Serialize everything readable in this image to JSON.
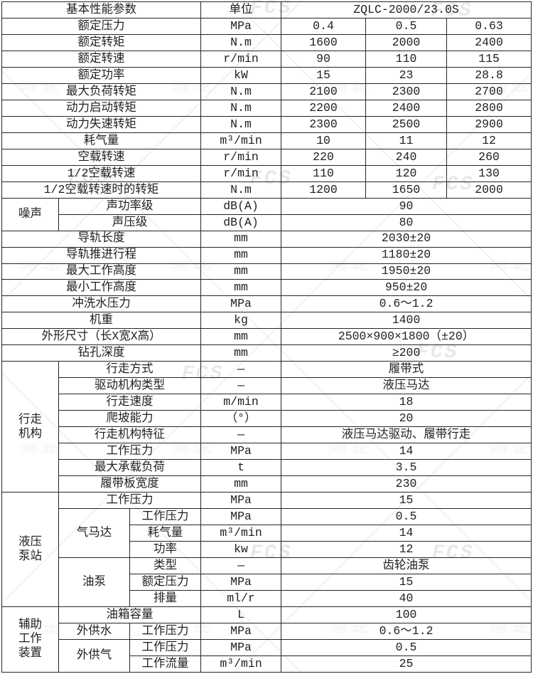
{
  "colors": {
    "background": "#ffffff",
    "border": "#262626",
    "text": "#1f1f1f",
    "watermark_gray": "#b2b2b2"
  },
  "watermark": {
    "fcs": "FCS",
    "cjk": "河北"
  },
  "table": {
    "rows": [
      [
        {
          "k": "h",
          "t": "基本性能参数",
          "c": 3
        },
        {
          "k": "h",
          "t": "单位"
        },
        {
          "k": "h",
          "t": "ZQLC-2000/23.0S",
          "c": 3
        }
      ],
      [
        {
          "k": "p",
          "t": "额定压力",
          "c": 3
        },
        {
          "k": "u",
          "t": "MPa"
        },
        {
          "k": "v",
          "t": "0.4"
        },
        {
          "k": "v",
          "t": "0.5"
        },
        {
          "k": "v",
          "t": "0.63"
        }
      ],
      [
        {
          "k": "p",
          "t": "额定转矩",
          "c": 3
        },
        {
          "k": "u",
          "t": "N.m"
        },
        {
          "k": "v",
          "t": "1600"
        },
        {
          "k": "v",
          "t": "2000"
        },
        {
          "k": "v",
          "t": "2400"
        }
      ],
      [
        {
          "k": "p",
          "t": "额定转速",
          "c": 3
        },
        {
          "k": "u",
          "t": "r/min"
        },
        {
          "k": "v",
          "t": "90"
        },
        {
          "k": "v",
          "t": "110"
        },
        {
          "k": "v",
          "t": "115"
        }
      ],
      [
        {
          "k": "p",
          "t": "额定功率",
          "c": 3
        },
        {
          "k": "u",
          "t": "kW"
        },
        {
          "k": "v",
          "t": "15"
        },
        {
          "k": "v",
          "t": "23"
        },
        {
          "k": "v",
          "t": "28.8"
        }
      ],
      [
        {
          "k": "p",
          "t": "最大负荷转矩",
          "c": 3
        },
        {
          "k": "u",
          "t": "N.m"
        },
        {
          "k": "v",
          "t": "2100"
        },
        {
          "k": "v",
          "t": "2300"
        },
        {
          "k": "v",
          "t": "2700"
        }
      ],
      [
        {
          "k": "p",
          "t": "动力启动转矩",
          "c": 3
        },
        {
          "k": "u",
          "t": "N.m"
        },
        {
          "k": "v",
          "t": "2200"
        },
        {
          "k": "v",
          "t": "2400"
        },
        {
          "k": "v",
          "t": "2800"
        }
      ],
      [
        {
          "k": "p",
          "t": "动力失速转矩",
          "c": 3
        },
        {
          "k": "u",
          "t": "N.m"
        },
        {
          "k": "v",
          "t": "2300"
        },
        {
          "k": "v",
          "t": "2500"
        },
        {
          "k": "v",
          "t": "2900"
        }
      ],
      [
        {
          "k": "p",
          "t": "耗气量",
          "c": 3
        },
        {
          "k": "u",
          "t": "m³/min"
        },
        {
          "k": "v",
          "t": "10"
        },
        {
          "k": "v",
          "t": "11"
        },
        {
          "k": "v",
          "t": "12"
        }
      ],
      [
        {
          "k": "p",
          "t": "空载转速",
          "c": 3
        },
        {
          "k": "u",
          "t": "r/min"
        },
        {
          "k": "v",
          "t": "220"
        },
        {
          "k": "v",
          "t": "240"
        },
        {
          "k": "v",
          "t": "260"
        }
      ],
      [
        {
          "k": "p",
          "t": "1/2空载转速",
          "c": 3
        },
        {
          "k": "u",
          "t": "r/min"
        },
        {
          "k": "v",
          "t": "110"
        },
        {
          "k": "v",
          "t": "120"
        },
        {
          "k": "v",
          "t": "130"
        }
      ],
      [
        {
          "k": "p",
          "t": "1/2空载转速时的转矩",
          "c": 3
        },
        {
          "k": "u",
          "t": "N.m"
        },
        {
          "k": "v",
          "t": "1200"
        },
        {
          "k": "v",
          "t": "1650"
        },
        {
          "k": "v",
          "t": "2000"
        }
      ],
      [
        {
          "k": "g",
          "t": "噪声",
          "r": 2
        },
        {
          "k": "p",
          "t": "声功率级",
          "c": 2
        },
        {
          "k": "u",
          "t": "dB(A)"
        },
        {
          "k": "v",
          "t": "90",
          "c": 3
        }
      ],
      [
        {
          "k": "p",
          "t": "声压级",
          "c": 2
        },
        {
          "k": "u",
          "t": "dB(A)"
        },
        {
          "k": "v",
          "t": "80",
          "c": 3
        }
      ],
      [
        {
          "k": "p",
          "t": "导轨长度",
          "c": 3
        },
        {
          "k": "u",
          "t": "mm"
        },
        {
          "k": "v",
          "t": "2030±20",
          "c": 3
        }
      ],
      [
        {
          "k": "p",
          "t": "导轨推进行程",
          "c": 3
        },
        {
          "k": "u",
          "t": "mm"
        },
        {
          "k": "v",
          "t": "1180±20",
          "c": 3
        }
      ],
      [
        {
          "k": "p",
          "t": "最大工作高度",
          "c": 3
        },
        {
          "k": "u",
          "t": "mm"
        },
        {
          "k": "v",
          "t": "1950±20",
          "c": 3
        }
      ],
      [
        {
          "k": "p",
          "t": "最小工作高度",
          "c": 3
        },
        {
          "k": "u",
          "t": "mm"
        },
        {
          "k": "v",
          "t": "950±20",
          "c": 3
        }
      ],
      [
        {
          "k": "p",
          "t": "冲洗水压力",
          "c": 3
        },
        {
          "k": "u",
          "t": "MPa"
        },
        {
          "k": "v",
          "t": "0.6～1.2",
          "c": 3
        }
      ],
      [
        {
          "k": "p",
          "t": "机重",
          "c": 3
        },
        {
          "k": "u",
          "t": "kg"
        },
        {
          "k": "v",
          "t": "1400",
          "c": 3
        }
      ],
      [
        {
          "k": "p",
          "t": "外形尺寸（长X宽X高）",
          "c": 3
        },
        {
          "k": "u",
          "t": "mm"
        },
        {
          "k": "v",
          "t": "2500×900×1800（±20）",
          "c": 3
        }
      ],
      [
        {
          "k": "p",
          "t": "钻孔深度",
          "c": 3
        },
        {
          "k": "u",
          "t": "mm"
        },
        {
          "k": "v",
          "t": "≥200",
          "c": 3
        }
      ],
      [
        {
          "k": "g",
          "t": "行走\n机构",
          "r": 8
        },
        {
          "k": "p",
          "t": "行走方式",
          "c": 2
        },
        {
          "k": "u",
          "t": "—"
        },
        {
          "k": "v",
          "t": "履带式",
          "c": 3
        }
      ],
      [
        {
          "k": "p",
          "t": "驱动机构类型",
          "c": 2
        },
        {
          "k": "u",
          "t": "—"
        },
        {
          "k": "v",
          "t": "液压马达",
          "c": 3
        }
      ],
      [
        {
          "k": "p",
          "t": "行走速度",
          "c": 2
        },
        {
          "k": "u",
          "t": "m/min"
        },
        {
          "k": "v",
          "t": "18",
          "c": 3
        }
      ],
      [
        {
          "k": "p",
          "t": "爬坡能力",
          "c": 2
        },
        {
          "k": "u",
          "t": "（°）"
        },
        {
          "k": "v",
          "t": "20",
          "c": 3
        }
      ],
      [
        {
          "k": "p",
          "t": "行走机构特征",
          "c": 2
        },
        {
          "k": "u",
          "t": "—"
        },
        {
          "k": "v",
          "t": "液压马达驱动、履带行走",
          "c": 3
        }
      ],
      [
        {
          "k": "p",
          "t": "工作压力",
          "c": 2
        },
        {
          "k": "u",
          "t": "MPa"
        },
        {
          "k": "v",
          "t": "14",
          "c": 3
        }
      ],
      [
        {
          "k": "p",
          "t": "最大承载负荷",
          "c": 2
        },
        {
          "k": "u",
          "t": "t"
        },
        {
          "k": "v",
          "t": "3.5",
          "c": 3
        }
      ],
      [
        {
          "k": "p",
          "t": "履带板宽度",
          "c": 2
        },
        {
          "k": "u",
          "t": "mm"
        },
        {
          "k": "v",
          "t": "230",
          "c": 3
        }
      ],
      [
        {
          "k": "g",
          "t": "液压\n泵站",
          "r": 7
        },
        {
          "k": "p",
          "t": "工作压力",
          "c": 2
        },
        {
          "k": "u",
          "t": "MPa"
        },
        {
          "k": "v",
          "t": "15",
          "c": 3
        }
      ],
      [
        {
          "k": "s",
          "t": "气马达",
          "r": 3
        },
        {
          "k": "p",
          "t": "工作压力"
        },
        {
          "k": "u",
          "t": "MPa"
        },
        {
          "k": "v",
          "t": "0.5",
          "c": 3
        }
      ],
      [
        {
          "k": "p",
          "t": "耗气量"
        },
        {
          "k": "u",
          "t": "m³/min"
        },
        {
          "k": "v",
          "t": "14",
          "c": 3
        }
      ],
      [
        {
          "k": "p",
          "t": "功率"
        },
        {
          "k": "u",
          "t": "kw"
        },
        {
          "k": "v",
          "t": "12",
          "c": 3
        }
      ],
      [
        {
          "k": "s",
          "t": "油泵",
          "r": 3
        },
        {
          "k": "p",
          "t": "类型"
        },
        {
          "k": "u",
          "t": "—"
        },
        {
          "k": "v",
          "t": "齿轮油泵",
          "c": 3
        }
      ],
      [
        {
          "k": "p",
          "t": "额定压力"
        },
        {
          "k": "u",
          "t": "MPa"
        },
        {
          "k": "v",
          "t": "15",
          "c": 3
        }
      ],
      [
        {
          "k": "p",
          "t": "排量"
        },
        {
          "k": "u",
          "t": "ml/r"
        },
        {
          "k": "v",
          "t": "40",
          "c": 3
        }
      ],
      [
        {
          "k": "g",
          "t": "辅助\n工作\n装置",
          "r": 4
        },
        {
          "k": "p",
          "t": "油箱容量",
          "c": 2
        },
        {
          "k": "u",
          "t": "L"
        },
        {
          "k": "v",
          "t": "100",
          "c": 3
        }
      ],
      [
        {
          "k": "s",
          "t": "外供水"
        },
        {
          "k": "p",
          "t": "工作压力"
        },
        {
          "k": "u",
          "t": "MPa"
        },
        {
          "k": "v",
          "t": "0.6～1.2",
          "c": 3
        }
      ],
      [
        {
          "k": "s",
          "t": "外供气",
          "r": 2
        },
        {
          "k": "p",
          "t": "工作压力"
        },
        {
          "k": "u",
          "t": "MPa"
        },
        {
          "k": "v",
          "t": "0.5",
          "c": 3
        }
      ],
      [
        {
          "k": "p",
          "t": "工作流量"
        },
        {
          "k": "u",
          "t": "m³/min"
        },
        {
          "k": "v",
          "t": "25",
          "c": 3
        }
      ]
    ]
  }
}
